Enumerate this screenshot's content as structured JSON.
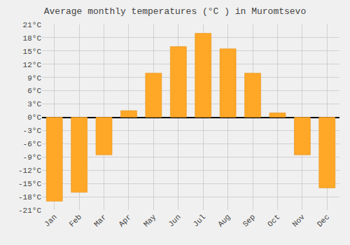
{
  "chart_data": {
    "type": "bar",
    "title": "Average monthly temperatures (°C ) in Muromtsevo",
    "categories": [
      "Jan",
      "Feb",
      "Mar",
      "Apr",
      "May",
      "Jun",
      "Jul",
      "Aug",
      "Sep",
      "Oct",
      "Nov",
      "Dec"
    ],
    "values": [
      -19,
      -17,
      -8.5,
      1.5,
      10,
      16,
      19,
      15.5,
      10,
      1,
      -8.5,
      -16
    ],
    "color": "#FFA726",
    "ylim": [
      -21,
      21
    ],
    "yticks": [
      {
        "value": -21,
        "label": "-21°C"
      },
      {
        "value": -18,
        "label": "-18°C"
      },
      {
        "value": -15,
        "label": "-15°C"
      },
      {
        "value": -12,
        "label": "-12°C"
      },
      {
        "value": -9,
        "label": "-9°C"
      },
      {
        "value": -6,
        "label": "-6°C"
      },
      {
        "value": -3,
        "label": "-3°C"
      },
      {
        "value": 0,
        "label": "0°C"
      },
      {
        "value": 3,
        "label": "3°C"
      },
      {
        "value": 6,
        "label": "6°C"
      },
      {
        "value": 9,
        "label": "9°C"
      },
      {
        "value": 12,
        "label": "12°C"
      },
      {
        "value": 15,
        "label": "15°C"
      },
      {
        "value": 18,
        "label": "18°C"
      },
      {
        "value": 21,
        "label": "21°C"
      }
    ],
    "grid": true
  }
}
